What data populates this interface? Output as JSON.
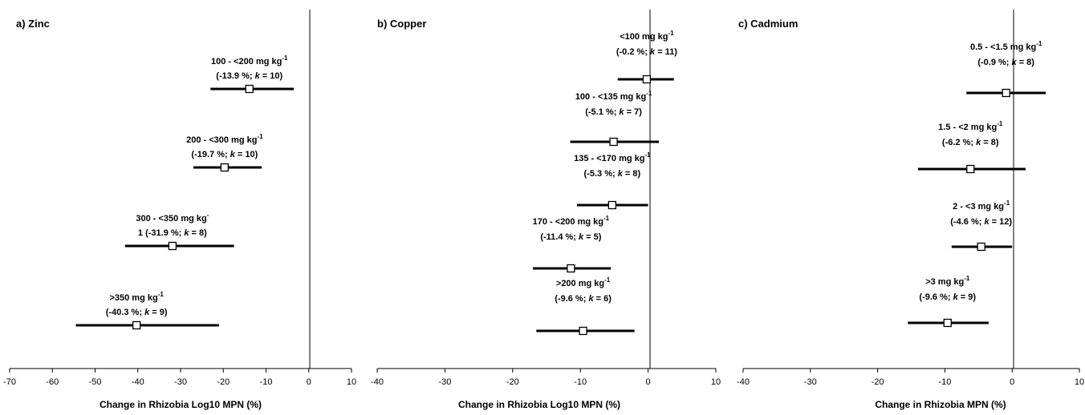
{
  "chart_data": [
    {
      "type": "forest",
      "panel_title": "a) Zinc",
      "xlabel": "Change in Rhizobia Log10 MPN (%)",
      "xlim": [
        -70,
        10
      ],
      "xticks": [
        "-70",
        "-60",
        "-50",
        "-40",
        "-30",
        "-20",
        "-10",
        "0",
        "10"
      ],
      "rows": [
        {
          "label1": "100 - <200 mg kg-1",
          "label2": "(-13.9 %; k = 10)",
          "value": -13.9,
          "ci": [
            -23,
            -3.5
          ]
        },
        {
          "label1": "200 - <300 mg kg-1",
          "label2": "(-19.7 %; k = 10)",
          "value": -19.7,
          "ci": [
            -27,
            -11
          ]
        },
        {
          "label1": "300 - <350 mg kg-",
          "label2": "1 (-31.9 %; k = 8)",
          "value": -31.9,
          "ci": [
            -43,
            -17.5
          ]
        },
        {
          "label1": ">350 mg kg-1",
          "label2": "(-40.3 %; k = 9)",
          "value": -40.3,
          "ci": [
            -54.5,
            -21
          ]
        }
      ]
    },
    {
      "type": "forest",
      "panel_title": "b) Copper",
      "xlabel": "Change in Rhizobia Log10 MPN (%)",
      "xlim": [
        -40,
        10
      ],
      "xticks": [
        "-40",
        "-30",
        "-20",
        "-10",
        "0",
        "10"
      ],
      "rows": [
        {
          "label1": "<100 mg kg-1",
          "label2": "(-0.2 %; k = 11)",
          "value": -0.2,
          "ci": [
            -4.5,
            3.8
          ]
        },
        {
          "label1": "100 - <135 mg kg-1",
          "label2": "(-5.1 %; k = 7)",
          "value": -5.1,
          "ci": [
            -11.5,
            1.6
          ]
        },
        {
          "label1": "135 - <170 mg kg-1",
          "label2": "(-5.3 %; k = 8)",
          "value": -5.3,
          "ci": [
            -10.5,
            0
          ]
        },
        {
          "label1": "170 - <200 mg kg-1",
          "label2": "(-11.4 %; k = 5)",
          "value": -11.4,
          "ci": [
            -17,
            -5.5
          ]
        },
        {
          "label1": ">200 mg kg-1",
          "label2": "(-9.6 %; k = 6)",
          "value": -9.6,
          "ci": [
            -16.5,
            -2
          ]
        }
      ]
    },
    {
      "type": "forest",
      "panel_title": "c) Cadmium",
      "xlabel": "Change in Rhizobia MPN (%)",
      "xlim": [
        -40,
        10
      ],
      "xticks": [
        "-40",
        "-30",
        "-20",
        "-10",
        "0",
        "10"
      ],
      "rows": [
        {
          "label1": "0.5 - <1.5 mg kg-1",
          "label2": "(-0.9 %; k = 8)",
          "value": -0.9,
          "ci": [
            -6.8,
            5
          ]
        },
        {
          "label1": "1.5 - <2 mg kg-1",
          "label2": "(-6.2 %; k = 8)",
          "value": -6.2,
          "ci": [
            -14,
            2
          ]
        },
        {
          "label1": "2 - <3 mg kg-1",
          "label2": "(-4.6 %; k = 12)",
          "value": -4.6,
          "ci": [
            -9,
            0
          ]
        },
        {
          "label1": ">3 mg kg-1",
          "label2": "(-9.6 %; k = 9)",
          "value": -9.6,
          "ci": [
            -15.5,
            -3.5
          ]
        }
      ]
    }
  ]
}
